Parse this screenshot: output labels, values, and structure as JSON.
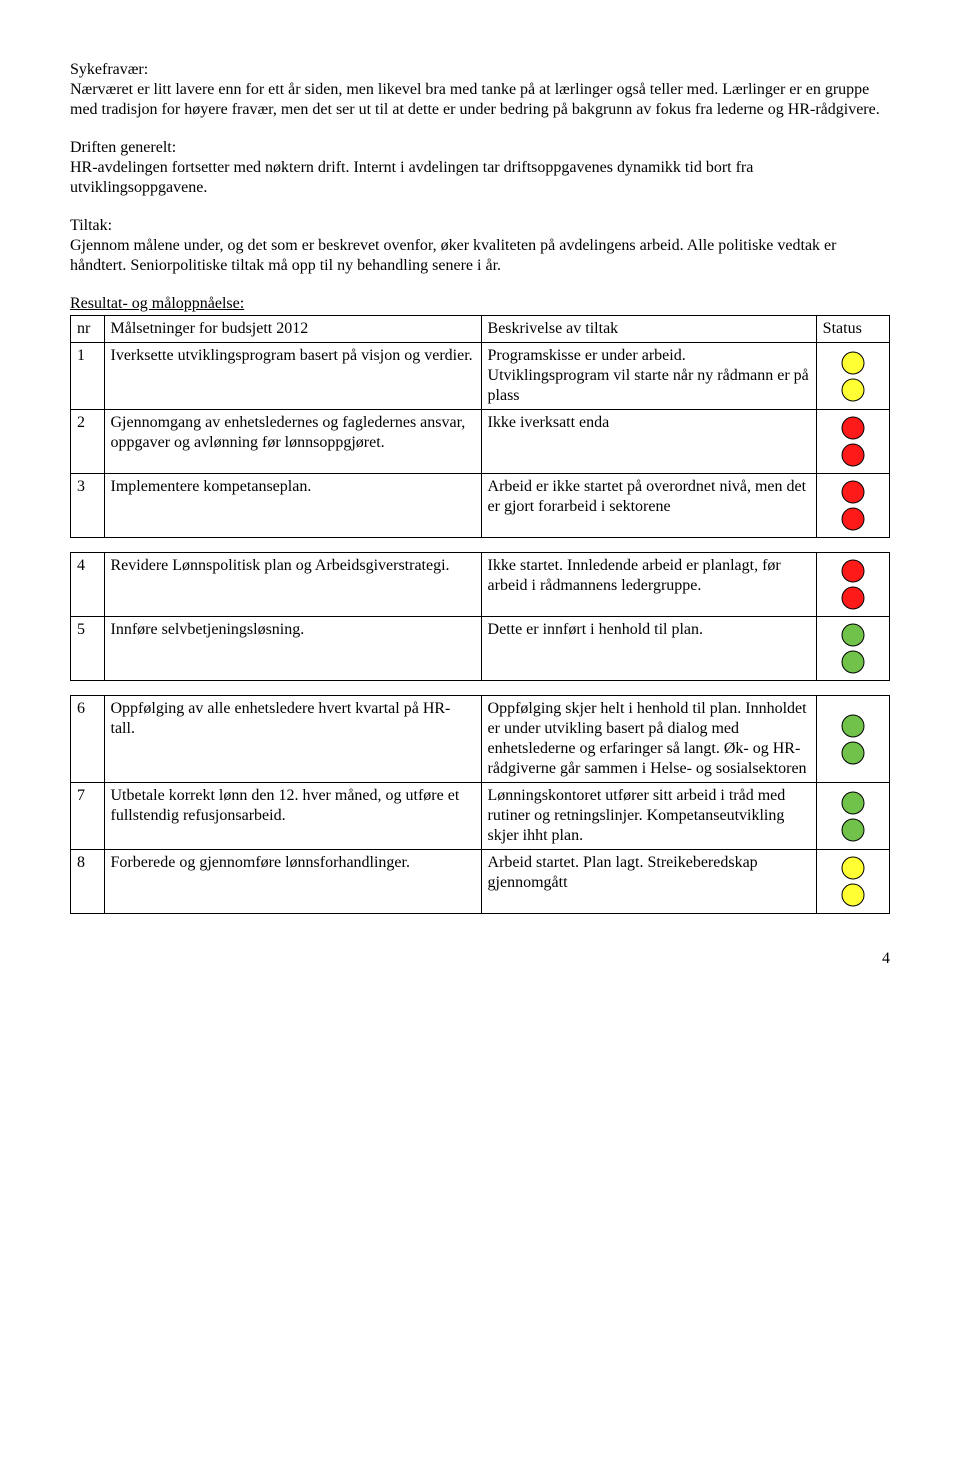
{
  "sections": {
    "sykefravaer_label": "Sykefravær:",
    "sykefravaer_text": "Nærværet er litt lavere enn for ett år siden, men likevel bra med tanke på at lærlinger også teller med. Lærlinger er en gruppe med tradisjon for høyere fravær, men det ser ut til at dette er under bedring på bakgrunn av fokus fra lederne og HR-rådgivere.",
    "drift_label": "Driften generelt:",
    "drift_text": "HR-avdelingen fortsetter med nøktern drift. Internt i avdelingen tar driftsoppgavenes dynamikk tid bort fra utviklingsoppgavene.",
    "tiltak_label": "Tiltak:",
    "tiltak_text": "Gjennom målene under, og det som er beskrevet ovenfor, øker kvaliteten på avdelingens arbeid. Alle politiske vedtak er håndtert. Seniorpolitiske tiltak må opp til ny behandling senere i år.",
    "resultat_label": "Resultat- og måloppnåelse:"
  },
  "headers": {
    "nr": "nr",
    "goal": "Målsetninger for budsjett 2012",
    "desc": "Beskrivelse av tiltak",
    "status": "Status"
  },
  "colors": {
    "green": "#70c24a",
    "yellow": "#ffff33",
    "red": "#ff1a1a",
    "stroke": "#000000"
  },
  "dot": {
    "r": 11,
    "stroke_width": 1
  },
  "group1": [
    {
      "nr": "1",
      "goal": "Iverksette utviklingsprogram basert på visjon og verdier.",
      "desc": "Programskisse er under arbeid. Utviklingsprogram vil starte når ny rådmann er på plass",
      "status": "yellow"
    },
    {
      "nr": "2",
      "goal": "Gjennomgang av enhetsledernes og fagledernes ansvar, oppgaver og avlønning før lønnsoppgjøret.",
      "desc": "Ikke iverksatt enda",
      "status": "red"
    },
    {
      "nr": "3",
      "goal": "Implementere kompetanseplan.",
      "desc": "Arbeid er ikke startet på overordnet nivå, men det er gjort forarbeid i sektorene",
      "status": "red"
    }
  ],
  "group2": [
    {
      "nr": "4",
      "goal": "Revidere Lønnspolitisk plan og Arbeidsgiverstrategi.",
      "desc": "Ikke startet. Innledende arbeid er planlagt, før arbeid i rådmannens ledergruppe.",
      "status": "red"
    },
    {
      "nr": "5",
      "goal": "Innføre selvbetjeningsløsning.",
      "desc": "Dette er innført i henhold til plan.",
      "status": "green"
    }
  ],
  "group3": [
    {
      "nr": "6",
      "goal": "Oppfølging av alle enhetsledere hvert kvartal på HR-tall.",
      "desc": "Oppfølging skjer helt i henhold til plan. Innholdet er under utvikling basert på dialog med enhetslederne og erfaringer så langt. Øk- og HR-rådgiverne går sammen i Helse- og sosialsektoren",
      "status": "green"
    },
    {
      "nr": "7",
      "goal": "Utbetale korrekt lønn den 12. hver måned, og utføre et fullstendig refusjonsarbeid.",
      "desc": "Lønningskontoret utfører sitt arbeid i tråd med rutiner og retningslinjer. Kompetanseutvikling skjer ihht plan.",
      "status": "green"
    },
    {
      "nr": "8",
      "goal": "Forberede og gjennomføre lønnsforhandlinger.",
      "desc": "Arbeid startet. Plan lagt. Streikeberedskap gjennomgått",
      "status": "yellow"
    }
  ],
  "page_number": "4"
}
